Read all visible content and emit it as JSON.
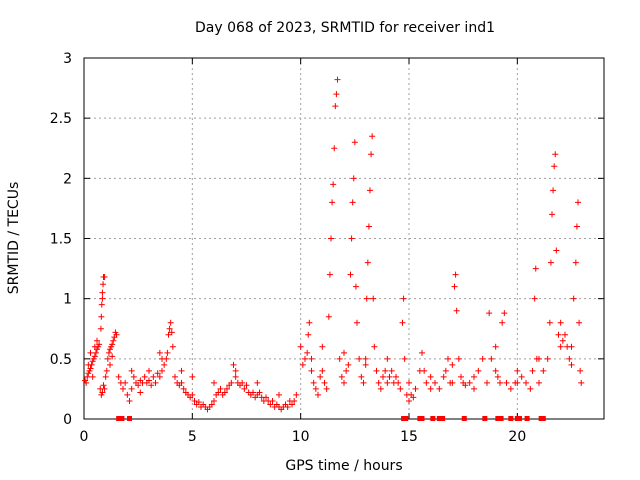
{
  "chart_data": {
    "type": "scatter",
    "title": "Day 068 of 2023, SRMTID for receiver ind1",
    "xlabel": "GPS time / hours",
    "ylabel": "SRMTID / TECUs",
    "xlim": [
      0,
      24
    ],
    "ylim": [
      0,
      3
    ],
    "x_ticks": [
      0,
      5,
      10,
      15,
      20
    ],
    "x_tick_labels": [
      "0",
      "5",
      "10",
      "15",
      "20"
    ],
    "y_ticks": [
      0,
      0.5,
      1,
      1.5,
      2,
      2.5,
      3
    ],
    "y_tick_labels": [
      "0",
      "0.5",
      "1",
      "1.5",
      "2",
      "2.5",
      "3"
    ],
    "grid": true,
    "marker": "+",
    "color": "#ff0000",
    "series": [
      {
        "name": "SRMTID",
        "points": [
          [
            0.05,
            0.32
          ],
          [
            0.1,
            0.3
          ],
          [
            0.15,
            0.35
          ],
          [
            0.2,
            0.38
          ],
          [
            0.25,
            0.4
          ],
          [
            0.3,
            0.42
          ],
          [
            0.35,
            0.45
          ],
          [
            0.4,
            0.48
          ],
          [
            0.45,
            0.5
          ],
          [
            0.5,
            0.52
          ],
          [
            0.55,
            0.55
          ],
          [
            0.6,
            0.58
          ],
          [
            0.65,
            0.6
          ],
          [
            0.7,
            0.62
          ],
          [
            0.3,
            0.55
          ],
          [
            0.5,
            0.6
          ],
          [
            0.6,
            0.65
          ],
          [
            0.2,
            0.45
          ],
          [
            0.4,
            0.35
          ],
          [
            0.75,
            0.25
          ],
          [
            0.8,
            0.2
          ],
          [
            0.85,
            0.22
          ],
          [
            0.9,
            0.28
          ],
          [
            0.95,
            0.25
          ],
          [
            0.78,
            0.75
          ],
          [
            0.8,
            0.85
          ],
          [
            0.82,
            0.95
          ],
          [
            0.85,
            1.05
          ],
          [
            0.88,
            1.12
          ],
          [
            0.9,
            1.18
          ],
          [
            0.95,
            1.18
          ],
          [
            0.85,
            1.0
          ],
          [
            1.0,
            0.35
          ],
          [
            1.05,
            0.4
          ],
          [
            1.1,
            0.5
          ],
          [
            1.15,
            0.55
          ],
          [
            1.2,
            0.58
          ],
          [
            1.25,
            0.6
          ],
          [
            1.3,
            0.62
          ],
          [
            1.35,
            0.65
          ],
          [
            1.4,
            0.68
          ],
          [
            1.45,
            0.72
          ],
          [
            1.5,
            0.7
          ],
          [
            1.2,
            0.45
          ],
          [
            1.3,
            0.52
          ],
          [
            1.6,
            0.35
          ],
          [
            1.7,
            0.3
          ],
          [
            1.8,
            0.25
          ],
          [
            1.9,
            0.3
          ],
          [
            2.0,
            0.2
          ],
          [
            2.1,
            0.15
          ],
          [
            2.2,
            0.25
          ],
          [
            2.3,
            0.35
          ],
          [
            2.4,
            0.3
          ],
          [
            2.5,
            0.28
          ],
          [
            2.6,
            0.32
          ],
          [
            2.7,
            0.3
          ],
          [
            2.8,
            0.35
          ],
          [
            2.9,
            0.3
          ],
          [
            3.0,
            0.32
          ],
          [
            3.1,
            0.28
          ],
          [
            3.2,
            0.35
          ],
          [
            3.3,
            0.3
          ],
          [
            3.4,
            0.38
          ],
          [
            3.5,
            0.35
          ],
          [
            3.6,
            0.4
          ],
          [
            3.7,
            0.45
          ],
          [
            3.8,
            0.5
          ],
          [
            3.85,
            0.55
          ],
          [
            3.9,
            0.7
          ],
          [
            3.95,
            0.75
          ],
          [
            4.0,
            0.8
          ],
          [
            4.05,
            0.72
          ],
          [
            4.1,
            0.6
          ],
          [
            3.5,
            0.55
          ],
          [
            3.6,
            0.5
          ],
          [
            2.2,
            0.4
          ],
          [
            2.6,
            0.22
          ],
          [
            3.0,
            0.4
          ],
          [
            4.2,
            0.35
          ],
          [
            4.3,
            0.3
          ],
          [
            4.4,
            0.28
          ],
          [
            4.5,
            0.3
          ],
          [
            4.6,
            0.25
          ],
          [
            4.7,
            0.22
          ],
          [
            4.8,
            0.2
          ],
          [
            4.9,
            0.18
          ],
          [
            5.0,
            0.2
          ],
          [
            5.1,
            0.15
          ],
          [
            5.2,
            0.12
          ],
          [
            5.3,
            0.14
          ],
          [
            5.4,
            0.1
          ],
          [
            5.5,
            0.12
          ],
          [
            5.6,
            0.1
          ],
          [
            5.7,
            0.08
          ],
          [
            5.8,
            0.1
          ],
          [
            5.9,
            0.12
          ],
          [
            6.0,
            0.15
          ],
          [
            6.1,
            0.2
          ],
          [
            6.2,
            0.22
          ],
          [
            6.3,
            0.25
          ],
          [
            6.4,
            0.2
          ],
          [
            6.5,
            0.22
          ],
          [
            6.6,
            0.25
          ],
          [
            6.7,
            0.28
          ],
          [
            6.8,
            0.3
          ],
          [
            6.9,
            0.45
          ],
          [
            7.0,
            0.35
          ],
          [
            7.1,
            0.3
          ],
          [
            7.2,
            0.28
          ],
          [
            7.3,
            0.3
          ],
          [
            7.4,
            0.25
          ],
          [
            7.5,
            0.28
          ],
          [
            7.6,
            0.22
          ],
          [
            7.7,
            0.2
          ],
          [
            7.8,
            0.22
          ],
          [
            7.9,
            0.18
          ],
          [
            8.0,
            0.2
          ],
          [
            8.1,
            0.22
          ],
          [
            8.2,
            0.18
          ],
          [
            8.3,
            0.15
          ],
          [
            8.4,
            0.18
          ],
          [
            8.5,
            0.15
          ],
          [
            8.6,
            0.12
          ],
          [
            8.7,
            0.15
          ],
          [
            8.8,
            0.1
          ],
          [
            8.9,
            0.12
          ],
          [
            9.0,
            0.1
          ],
          [
            9.1,
            0.08
          ],
          [
            9.2,
            0.1
          ],
          [
            9.3,
            0.12
          ],
          [
            9.4,
            0.1
          ],
          [
            9.5,
            0.15
          ],
          [
            9.6,
            0.12
          ],
          [
            9.7,
            0.15
          ],
          [
            9.8,
            0.2
          ],
          [
            4.5,
            0.4
          ],
          [
            5.0,
            0.35
          ],
          [
            6.0,
            0.3
          ],
          [
            7.0,
            0.4
          ],
          [
            8.0,
            0.3
          ],
          [
            9.0,
            0.2
          ],
          [
            10.0,
            0.6
          ],
          [
            10.1,
            0.45
          ],
          [
            10.2,
            0.5
          ],
          [
            10.3,
            0.55
          ],
          [
            10.35,
            0.7
          ],
          [
            10.4,
            0.8
          ],
          [
            10.5,
            0.4
          ],
          [
            10.6,
            0.3
          ],
          [
            10.7,
            0.25
          ],
          [
            10.8,
            0.2
          ],
          [
            10.9,
            0.35
          ],
          [
            11.0,
            0.4
          ],
          [
            11.1,
            0.3
          ],
          [
            11.2,
            0.25
          ],
          [
            11.3,
            0.85
          ],
          [
            11.35,
            1.2
          ],
          [
            11.4,
            1.5
          ],
          [
            11.45,
            1.8
          ],
          [
            11.5,
            1.95
          ],
          [
            11.55,
            2.25
          ],
          [
            11.6,
            2.6
          ],
          [
            11.65,
            2.7
          ],
          [
            11.7,
            2.82
          ],
          [
            11.8,
            0.5
          ],
          [
            11.9,
            0.35
          ],
          [
            12.0,
            0.3
          ],
          [
            12.1,
            0.4
          ],
          [
            12.2,
            0.45
          ],
          [
            12.3,
            1.2
          ],
          [
            12.35,
            1.5
          ],
          [
            12.4,
            1.8
          ],
          [
            12.45,
            2.0
          ],
          [
            12.5,
            2.3
          ],
          [
            12.55,
            1.1
          ],
          [
            12.6,
            0.8
          ],
          [
            12.7,
            0.5
          ],
          [
            12.8,
            0.35
          ],
          [
            12.9,
            0.3
          ],
          [
            13.0,
            0.5
          ],
          [
            13.05,
            1.0
          ],
          [
            13.1,
            1.3
          ],
          [
            13.15,
            1.6
          ],
          [
            13.2,
            1.9
          ],
          [
            13.25,
            2.2
          ],
          [
            13.3,
            2.35
          ],
          [
            13.35,
            1.0
          ],
          [
            13.4,
            0.6
          ],
          [
            13.5,
            0.4
          ],
          [
            13.6,
            0.3
          ],
          [
            13.7,
            0.25
          ],
          [
            13.8,
            0.35
          ],
          [
            13.9,
            0.4
          ],
          [
            14.0,
            0.3
          ],
          [
            14.1,
            0.35
          ],
          [
            14.2,
            0.4
          ],
          [
            14.3,
            0.3
          ],
          [
            14.4,
            0.35
          ],
          [
            14.5,
            0.3
          ],
          [
            14.6,
            0.25
          ],
          [
            14.7,
            0.8
          ],
          [
            14.75,
            1.0
          ],
          [
            14.8,
            0.5
          ],
          [
            14.9,
            0.2
          ],
          [
            15.0,
            0.15
          ],
          [
            15.1,
            0.2
          ],
          [
            15.2,
            0.18
          ],
          [
            15.3,
            0.25
          ],
          [
            15.5,
            0.4
          ],
          [
            15.6,
            0.55
          ],
          [
            15.7,
            0.4
          ],
          [
            15.8,
            0.3
          ],
          [
            16.0,
            0.25
          ],
          [
            16.2,
            0.3
          ],
          [
            16.4,
            0.25
          ],
          [
            16.6,
            0.35
          ],
          [
            16.7,
            0.4
          ],
          [
            16.8,
            0.5
          ],
          [
            16.9,
            0.3
          ],
          [
            17.0,
            0.3
          ],
          [
            17.1,
            1.1
          ],
          [
            17.15,
            1.2
          ],
          [
            17.2,
            0.9
          ],
          [
            17.3,
            0.5
          ],
          [
            17.4,
            0.35
          ],
          [
            17.5,
            0.3
          ],
          [
            17.6,
            0.28
          ],
          [
            17.8,
            0.3
          ],
          [
            18.0,
            0.25
          ],
          [
            18.2,
            0.4
          ],
          [
            18.4,
            0.5
          ],
          [
            18.6,
            0.3
          ],
          [
            18.7,
            0.88
          ],
          [
            18.8,
            0.5
          ],
          [
            19.0,
            0.6
          ],
          [
            19.1,
            0.35
          ],
          [
            19.2,
            0.3
          ],
          [
            19.3,
            0.8
          ],
          [
            19.4,
            0.88
          ],
          [
            19.5,
            0.3
          ],
          [
            19.7,
            0.25
          ],
          [
            19.9,
            0.3
          ],
          [
            20.0,
            0.4
          ],
          [
            20.2,
            0.35
          ],
          [
            20.4,
            0.3
          ],
          [
            20.6,
            0.25
          ],
          [
            20.7,
            0.4
          ],
          [
            20.8,
            1.0
          ],
          [
            20.85,
            1.25
          ],
          [
            20.9,
            0.5
          ],
          [
            21.0,
            0.3
          ],
          [
            21.2,
            0.4
          ],
          [
            21.4,
            0.5
          ],
          [
            21.5,
            0.8
          ],
          [
            21.55,
            1.3
          ],
          [
            21.6,
            1.7
          ],
          [
            21.65,
            1.9
          ],
          [
            21.7,
            2.1
          ],
          [
            21.75,
            2.2
          ],
          [
            21.8,
            1.4
          ],
          [
            21.9,
            0.7
          ],
          [
            22.0,
            0.6
          ],
          [
            22.1,
            0.65
          ],
          [
            22.2,
            0.7
          ],
          [
            22.3,
            0.6
          ],
          [
            22.4,
            0.5
          ],
          [
            22.5,
            0.45
          ],
          [
            22.6,
            1.0
          ],
          [
            22.7,
            1.3
          ],
          [
            22.75,
            1.6
          ],
          [
            22.8,
            1.8
          ],
          [
            22.85,
            0.8
          ],
          [
            22.9,
            0.4
          ],
          [
            22.95,
            0.3
          ],
          [
            10.5,
            0.5
          ],
          [
            11.0,
            0.6
          ],
          [
            12.0,
            0.55
          ],
          [
            13.0,
            0.45
          ],
          [
            14.0,
            0.5
          ],
          [
            15.0,
            0.3
          ],
          [
            16.0,
            0.35
          ],
          [
            17.0,
            0.45
          ],
          [
            18.0,
            0.35
          ],
          [
            19.0,
            0.4
          ],
          [
            20.0,
            0.3
          ],
          [
            21.0,
            0.5
          ],
          [
            22.0,
            0.8
          ],
          [
            22.5,
            0.6
          ]
        ]
      }
    ],
    "zero_markers": {
      "type": "bar",
      "y": 0,
      "x": [
        1.6,
        1.75,
        2.1,
        14.75,
        14.85,
        15.5,
        15.6,
        16.1,
        16.4,
        16.55,
        17.55,
        18.5,
        19.1,
        19.25,
        19.7,
        20.0,
        20.1,
        20.45,
        21.1,
        21.2
      ]
    }
  }
}
